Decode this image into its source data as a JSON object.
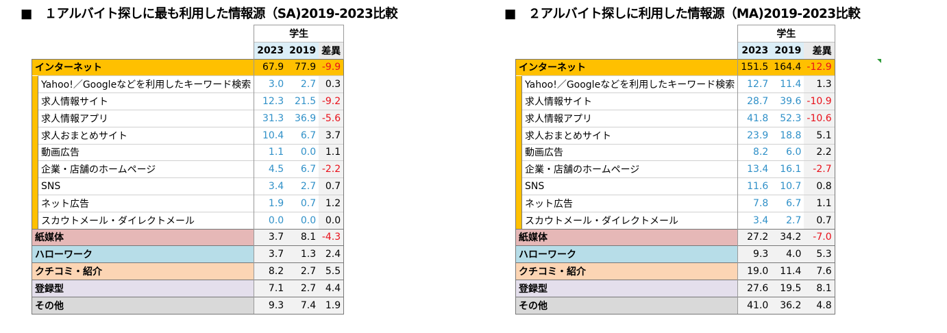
{
  "left": {
    "title": "■　１アルバイト探しに最も利用した情報源（SA)2019-2023比較",
    "group": "学生",
    "years": [
      "2023",
      "2019",
      "差異"
    ],
    "internet": {
      "label": "インターネット",
      "v2023": "67.9",
      "v2019": "77.9",
      "diff": "-9.9"
    },
    "subs": [
      {
        "label": "Yahoo!／Googleなどを利用したキーワード検索",
        "v2023": "3.0",
        "v2019": "2.7",
        "diff": "0.3"
      },
      {
        "label": "求人情報サイト",
        "v2023": "12.3",
        "v2019": "21.5",
        "diff": "-9.2"
      },
      {
        "label": "求人情報アプリ",
        "v2023": "31.3",
        "v2019": "36.9",
        "diff": "-5.6"
      },
      {
        "label": "求人おまとめサイト",
        "v2023": "10.4",
        "v2019": "6.7",
        "diff": "3.7"
      },
      {
        "label": "動画広告",
        "v2023": "1.1",
        "v2019": "0.0",
        "diff": "1.1"
      },
      {
        "label": "企業・店舗のホームページ",
        "v2023": "4.5",
        "v2019": "6.7",
        "diff": "-2.2"
      },
      {
        "label": "SNS",
        "v2023": "3.4",
        "v2019": "2.7",
        "diff": "0.7"
      },
      {
        "label": "ネット広告",
        "v2023": "1.9",
        "v2019": "0.7",
        "diff": "1.2"
      },
      {
        "label": "スカウトメール・ダイレクトメール",
        "v2023": "0.0",
        "v2019": "0.0",
        "diff": "0.0"
      }
    ],
    "cats": [
      {
        "label": "紙媒体",
        "v2023": "3.7",
        "v2019": "8.1",
        "diff": "-4.3"
      },
      {
        "label": "ハローワーク",
        "v2023": "3.7",
        "v2019": "1.3",
        "diff": "2.4"
      },
      {
        "label": "クチコミ・紹介",
        "v2023": "8.2",
        "v2019": "2.7",
        "diff": "5.5"
      },
      {
        "label": "登録型",
        "v2023": "7.1",
        "v2019": "2.7",
        "diff": "4.4"
      },
      {
        "label": "その他",
        "v2023": "9.3",
        "v2019": "7.4",
        "diff": "1.9"
      }
    ]
  },
  "right": {
    "title": "■　２アルバイト探しに利用した情報源（MA)2019-2023比較",
    "group": "学生",
    "years": [
      "2023",
      "2019",
      "差異"
    ],
    "internet": {
      "label": "インターネット",
      "v2023": "151.5",
      "v2019": "164.4",
      "diff": "-12.9"
    },
    "subs": [
      {
        "label": "Yahoo!／Googleなどを利用したキーワード検索",
        "v2023": "12.7",
        "v2019": "11.4",
        "diff": "1.3"
      },
      {
        "label": "求人情報サイト",
        "v2023": "28.7",
        "v2019": "39.6",
        "diff": "-10.9"
      },
      {
        "label": "求人情報アプリ",
        "v2023": "41.8",
        "v2019": "52.3",
        "diff": "-10.6"
      },
      {
        "label": "求人おまとめサイト",
        "v2023": "23.9",
        "v2019": "18.8",
        "diff": "5.1"
      },
      {
        "label": "動画広告",
        "v2023": "8.2",
        "v2019": "6.0",
        "diff": "2.2"
      },
      {
        "label": "企業・店舗のホームページ",
        "v2023": "13.4",
        "v2019": "16.1",
        "diff": "-2.7"
      },
      {
        "label": "SNS",
        "v2023": "11.6",
        "v2019": "10.7",
        "diff": "0.8"
      },
      {
        "label": "ネット広告",
        "v2023": "7.8",
        "v2019": "6.7",
        "diff": "1.1"
      },
      {
        "label": "スカウトメール・ダイレクトメール",
        "v2023": "3.4",
        "v2019": "2.7",
        "diff": "0.7"
      }
    ],
    "cats": [
      {
        "label": "紙媒体",
        "v2023": "27.2",
        "v2019": "34.2",
        "diff": "-7.0"
      },
      {
        "label": "ハローワーク",
        "v2023": "9.3",
        "v2019": "4.0",
        "diff": "5.3"
      },
      {
        "label": "クチコミ・紹介",
        "v2023": "19.0",
        "v2019": "11.4",
        "diff": "7.6"
      },
      {
        "label": "登録型",
        "v2023": "27.6",
        "v2019": "19.5",
        "diff": "8.1"
      },
      {
        "label": "その他",
        "v2023": "41.0",
        "v2019": "36.2",
        "diff": "4.8"
      }
    ]
  },
  "colors": {
    "internet": "#ffc000",
    "paper": "#e6b8b7",
    "hellowork": "#b7dde8",
    "kuchikomi": "#fcd5b4",
    "touroku": "#e4dfec",
    "other": "#d9d9d9",
    "year_header": "#dbeef7",
    "sub_value_blue": "#2f90c8",
    "negative": "#e8101a"
  }
}
